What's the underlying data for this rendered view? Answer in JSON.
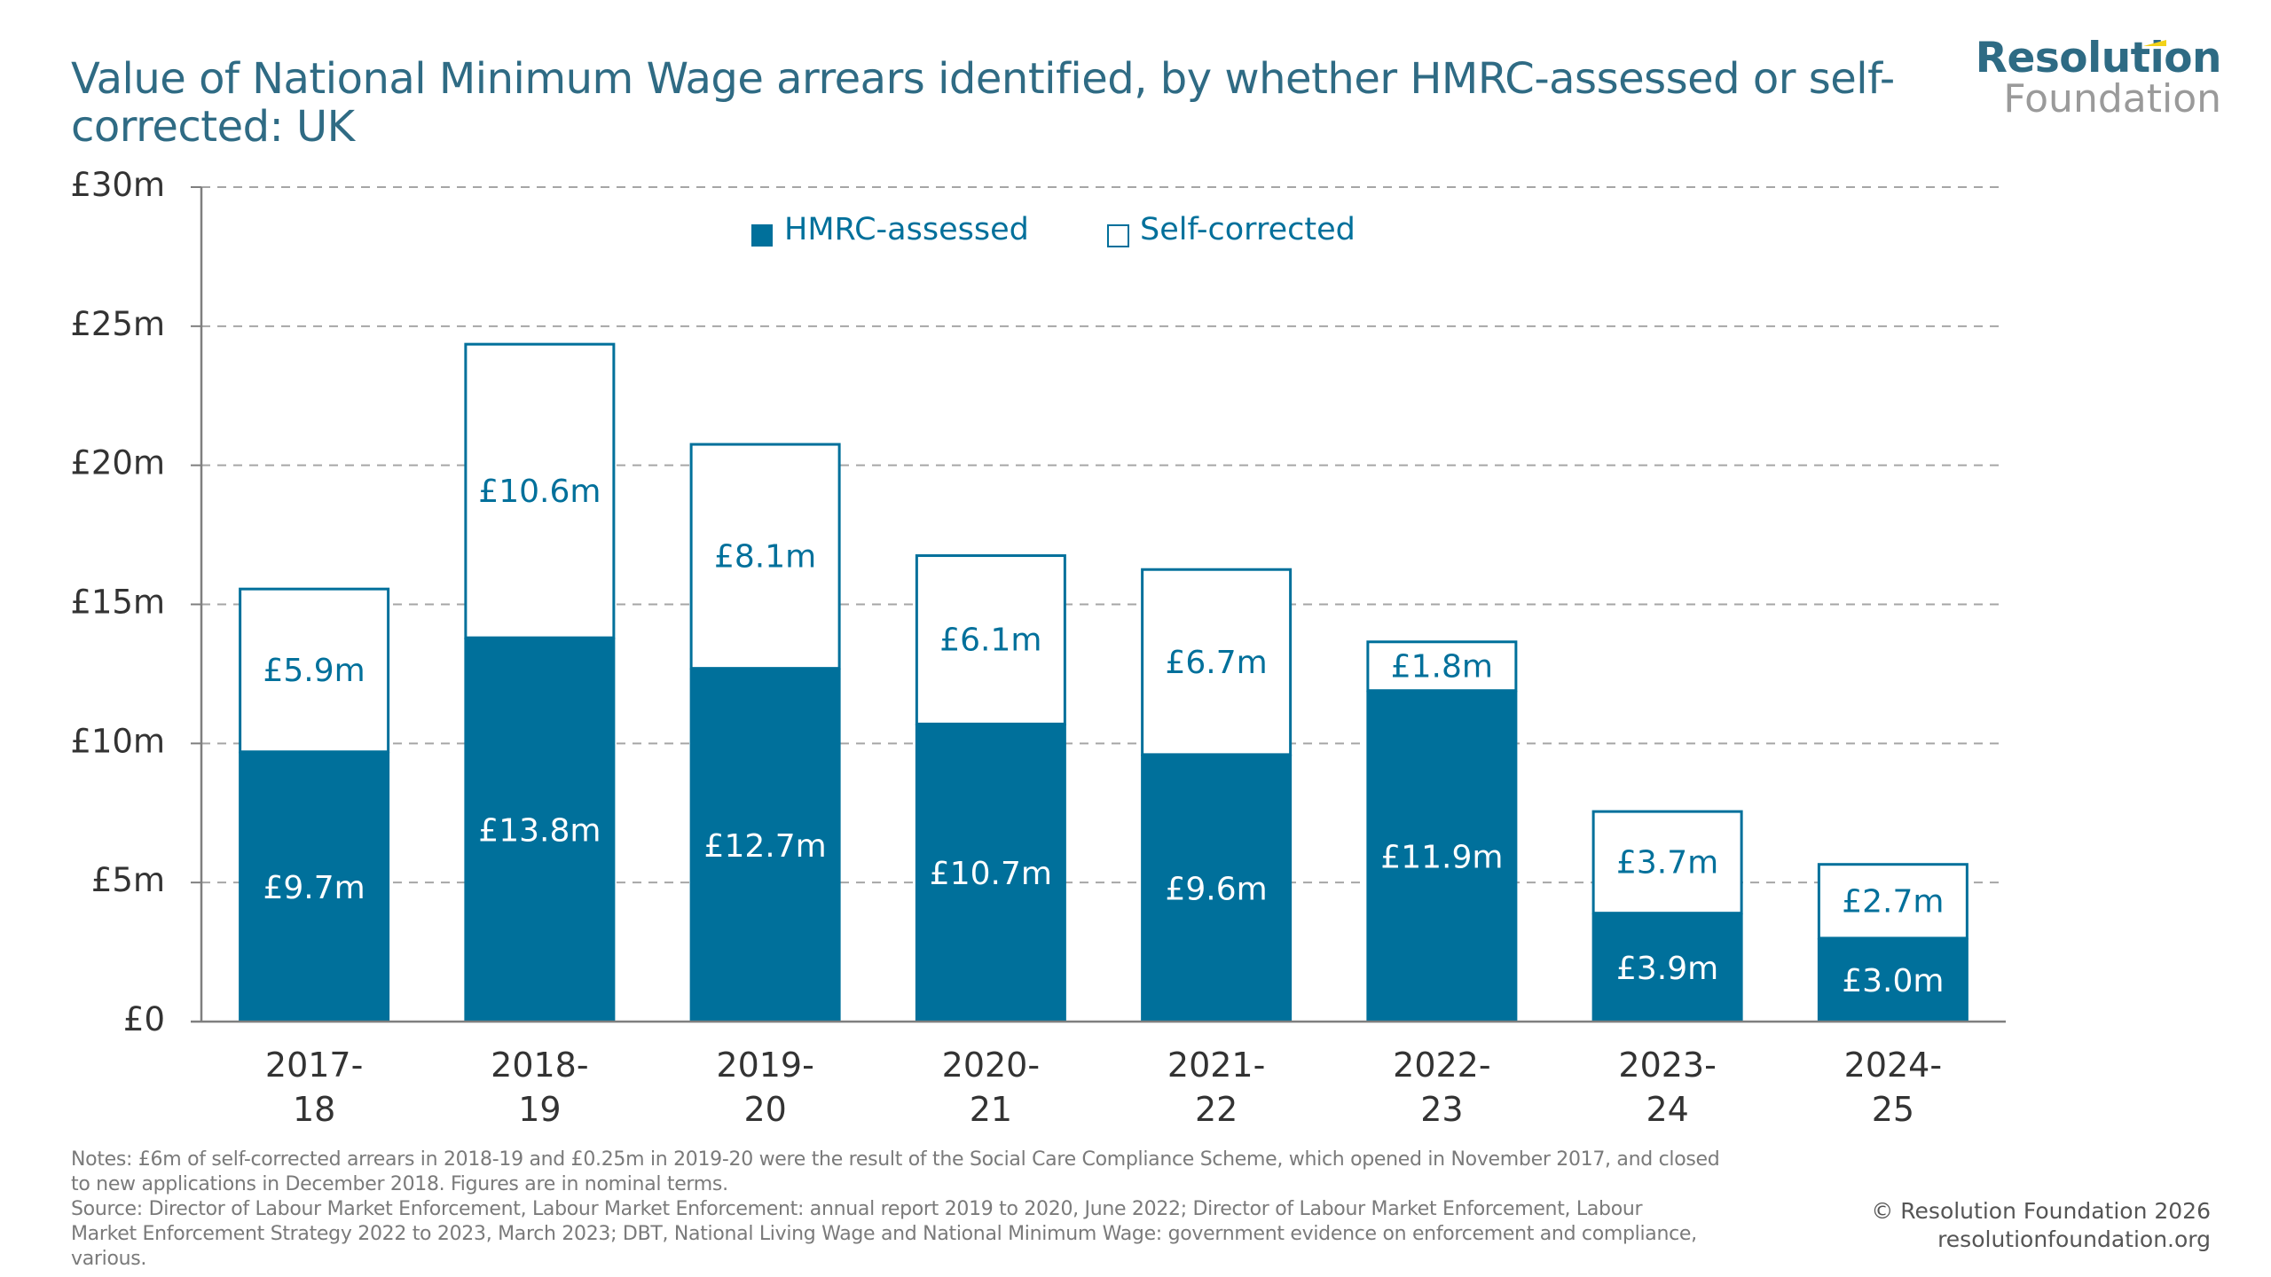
{
  "header": {
    "title_line1": "Value of National Minimum Wage arrears identified, by whether HMRC-assessed or self-",
    "title_line2": "corrected: UK"
  },
  "logo": {
    "line1": "Resolution",
    "line2": "Foundation",
    "accent_color": "#f3d218"
  },
  "colors": {
    "hmrc": "#00709b",
    "self_corrected_fill": "#ffffff",
    "self_corrected_stroke": "#00709b",
    "title": "#2f6b84",
    "grid": "#a6a6a6",
    "axis": "#7f7f7f"
  },
  "chart_data": {
    "type": "bar",
    "stacked": true,
    "title": "Value of National Minimum Wage arrears identified, by whether HMRC-assessed or self-corrected: UK",
    "xlabel": "",
    "ylabel": "",
    "ylim": [
      0,
      30
    ],
    "yticks": [
      0,
      5,
      10,
      15,
      20,
      25,
      30
    ],
    "ytick_labels": [
      "£0",
      "£5m",
      "£10m",
      "£15m",
      "£20m",
      "£25m",
      "£30m"
    ],
    "grid": true,
    "legend_position": "top-center",
    "categories": [
      [
        "2017-",
        "18"
      ],
      [
        "2018-",
        "19"
      ],
      [
        "2019-",
        "20"
      ],
      [
        "2020-",
        "21"
      ],
      [
        "2021-",
        "22"
      ],
      [
        "2022-",
        "23"
      ],
      [
        "2023-",
        "24"
      ],
      [
        "2024-",
        "25"
      ]
    ],
    "series": [
      {
        "name": "HMRC-assessed",
        "values": [
          9.7,
          13.8,
          12.7,
          10.7,
          9.6,
          11.9,
          3.9,
          3.0
        ],
        "labels": [
          "£9.7m",
          "£13.8m",
          "£12.7m",
          "£10.7m",
          "£9.6m",
          "£11.9m",
          "£3.9m",
          "£3.0m"
        ]
      },
      {
        "name": "Self-corrected",
        "values": [
          5.9,
          10.6,
          8.1,
          6.1,
          6.7,
          1.8,
          3.7,
          2.7
        ],
        "labels": [
          "£5.9m",
          "£10.6m",
          "£8.1m",
          "£6.1m",
          "£6.7m",
          "£1.8m",
          "£3.7m",
          "£2.7m"
        ]
      }
    ]
  },
  "footer": {
    "notes_line1": "Notes: £6m of self-corrected arrears in 2018-19 and £0.25m in 2019-20 were the result of the Social Care Compliance Scheme, which opened in November 2017, and closed",
    "notes_line2": "to new applications in December 2018. Figures are in nominal terms.",
    "source_line1": "Source: Director of Labour Market Enforcement, Labour Market Enforcement: annual report 2019 to 2020, June 2022; Director of Labour Market Enforcement, Labour",
    "source_line2": "Market Enforcement Strategy 2022 to 2023, March 2023; DBT, National Living Wage and National Minimum Wage: government evidence on enforcement and compliance,",
    "source_line3": "various.",
    "copyright": "© Resolution Foundation 2026",
    "website": "resolutionfoundation.org"
  }
}
